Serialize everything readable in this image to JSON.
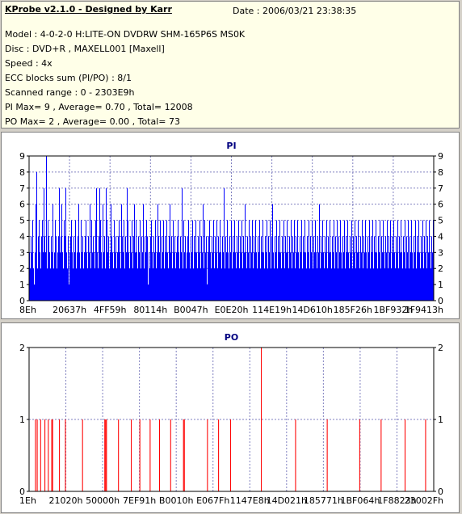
{
  "header": {
    "title": "KProbe v2.1.0 - Designed by Karr",
    "date": "Date : 2006/03/21 23:38:35",
    "lines": [
      "Model : 4-0-2-0 H:LITE-ON DVDRW SHM-165P6S MS0K",
      "Disc : DVD+R , MAXELL001 [Maxell]",
      "Speed : 4x",
      "ECC blocks sum (PI/PO) : 8/1",
      "Scanned range : 0 - 2303E9h",
      "PI Max= 9 , Average= 0.70 , Total= 12008",
      "PO Max= 2 , Average= 0.00 , Total= 73"
    ]
  },
  "chart_data": [
    {
      "type": "bar",
      "title": "PI",
      "ylim": [
        0,
        9
      ],
      "yticks": [
        "0",
        "1",
        "2",
        "3",
        "4",
        "5",
        "6",
        "7",
        "8",
        "9"
      ],
      "xticks": [
        "8Eh",
        "20637h",
        "4FF59h",
        "80114h",
        "B0047h",
        "E0E20h",
        "114E19h",
        "14D610h",
        "185F26h",
        "1BF932h",
        "1F9413h"
      ],
      "grid": true,
      "color": "#0000ff",
      "values": [
        3,
        2,
        4,
        3,
        5,
        2,
        1,
        3,
        6,
        8,
        2,
        4,
        5,
        3,
        2,
        4,
        5,
        3,
        7,
        4,
        3,
        9,
        2,
        5,
        4,
        3,
        2,
        4,
        3,
        6,
        2,
        3,
        5,
        4,
        2,
        3,
        4,
        7,
        3,
        4,
        6,
        3,
        2,
        5,
        4,
        7,
        3,
        2,
        4,
        1,
        3,
        4,
        5,
        3,
        2,
        4,
        3,
        5,
        2,
        3,
        4,
        6,
        3,
        2,
        5,
        3,
        4,
        2,
        3,
        4,
        5,
        3,
        2,
        4,
        3,
        6,
        2,
        5,
        3,
        4,
        3,
        2,
        5,
        7,
        3,
        2,
        4,
        7,
        5,
        3,
        2,
        6,
        3,
        4,
        2,
        7,
        5,
        3,
        4,
        2,
        3,
        6,
        4,
        3,
        2,
        5,
        3,
        4,
        2,
        3,
        4,
        5,
        3,
        2,
        6,
        4,
        3,
        5,
        2,
        4,
        3,
        7,
        5,
        3,
        2,
        4,
        3,
        5,
        2,
        4,
        6,
        3,
        5,
        3,
        2,
        4,
        3,
        5,
        2,
        4,
        3,
        6,
        2,
        4,
        3,
        5,
        4,
        1,
        3,
        2,
        4,
        5,
        3,
        2,
        4,
        3,
        5,
        2,
        3,
        6,
        4,
        3,
        5,
        2,
        4,
        3,
        5,
        2,
        4,
        3,
        5,
        3,
        2,
        4,
        6,
        3,
        4,
        2,
        5,
        3,
        4,
        2,
        3,
        4,
        5,
        3,
        2,
        4,
        3,
        7,
        2,
        5,
        3,
        4,
        2,
        3,
        4,
        5,
        3,
        2,
        4,
        3,
        5,
        2,
        4,
        3,
        5,
        3,
        2,
        4,
        3,
        5,
        2,
        4,
        3,
        6,
        2,
        5,
        3,
        4,
        1,
        3,
        4,
        5,
        3,
        2,
        4,
        3,
        5,
        2,
        4,
        3,
        5,
        2,
        4,
        3,
        5,
        3,
        2,
        4,
        3,
        7,
        2,
        4,
        3,
        5,
        3,
        2,
        4,
        3,
        5,
        2,
        4,
        3,
        5,
        3,
        2,
        4,
        3,
        5,
        2,
        4,
        3,
        5,
        2,
        4,
        3,
        6,
        3,
        2,
        4,
        3,
        5,
        2,
        4,
        3,
        5,
        2,
        4,
        3,
        5,
        3,
        2,
        4,
        3,
        5,
        2,
        4,
        3,
        5,
        3,
        2,
        4,
        3,
        5,
        2,
        4,
        3,
        5,
        2,
        4,
        6,
        3,
        2,
        4,
        3,
        5,
        2,
        4,
        3,
        5,
        3,
        2,
        4,
        3,
        5,
        2,
        4,
        3,
        5,
        3,
        2,
        4,
        3,
        5,
        2,
        4,
        3,
        5,
        2,
        4,
        3,
        5,
        3,
        2,
        4,
        3,
        5,
        2,
        4,
        3,
        5,
        3,
        2,
        4,
        3,
        5,
        2,
        4,
        3,
        5,
        2,
        4,
        3,
        5,
        3,
        2,
        4,
        3,
        6,
        2,
        4,
        3,
        5,
        3,
        2,
        4,
        3,
        5,
        2,
        4,
        3,
        5,
        3,
        2,
        4,
        3,
        5,
        2,
        4,
        3,
        5,
        2,
        4,
        3,
        5,
        3,
        2,
        4,
        3,
        5,
        2,
        4,
        3,
        5,
        3,
        2,
        4,
        3,
        5,
        2,
        4,
        3,
        5,
        2,
        4,
        3,
        5,
        3,
        2,
        4,
        3,
        5,
        2,
        4,
        3,
        5,
        3,
        2,
        4,
        3,
        5,
        2,
        4,
        3,
        5,
        2,
        4,
        3,
        5,
        3,
        2,
        4,
        3,
        5,
        2,
        4,
        3,
        5,
        3,
        2,
        4,
        3,
        5,
        2,
        4,
        3,
        5,
        2,
        4,
        3,
        5,
        3,
        2,
        4,
        3,
        5,
        2,
        4,
        3,
        5,
        3,
        2,
        4,
        3,
        5,
        2,
        4,
        3,
        5,
        2,
        4,
        3,
        5,
        3,
        2,
        4,
        3,
        5,
        2,
        4,
        3,
        5,
        3,
        2,
        4,
        3,
        5,
        2,
        4,
        3,
        5,
        2,
        4,
        3,
        5,
        3,
        2,
        4,
        3,
        5
      ]
    },
    {
      "type": "bar",
      "title": "PO",
      "ylim": [
        0,
        2
      ],
      "yticks": [
        "0",
        "1",
        "2"
      ],
      "xticks": [
        "1Eh",
        "21020h",
        "50000h",
        "7EF91h",
        "B0010h",
        "E067Fh",
        "1147E8h",
        "14D021h",
        "185771h",
        "1BF064h",
        "1F8823h",
        "23002Fh"
      ],
      "grid": true,
      "color": "#ff0000",
      "values": [
        0,
        0,
        0,
        0,
        0,
        0,
        0,
        1,
        0,
        1,
        0,
        0,
        0,
        1,
        0,
        0,
        0,
        0,
        1,
        0,
        0,
        0,
        1,
        0,
        0,
        0,
        1,
        1,
        0,
        0,
        0,
        0,
        0,
        0,
        0,
        1,
        0,
        0,
        0,
        0,
        0,
        0,
        1,
        0,
        0,
        0,
        0,
        0,
        0,
        0,
        0,
        0,
        0,
        0,
        0,
        0,
        0,
        0,
        0,
        0,
        0,
        0,
        1,
        0,
        0,
        0,
        0,
        0,
        0,
        0,
        0,
        0,
        0,
        0,
        0,
        0,
        0,
        0,
        0,
        0,
        0,
        0,
        0,
        0,
        0,
        0,
        0,
        0,
        1,
        1,
        1,
        0,
        0,
        0,
        0,
        0,
        0,
        0,
        0,
        0,
        0,
        0,
        0,
        0,
        1,
        0,
        0,
        0,
        0,
        0,
        0,
        0,
        0,
        0,
        0,
        0,
        0,
        0,
        0,
        1,
        0,
        0,
        0,
        0,
        0,
        0,
        0,
        0,
        0,
        1,
        0,
        0,
        0,
        0,
        0,
        0,
        0,
        0,
        0,
        0,
        0,
        1,
        0,
        0,
        0,
        0,
        0,
        0,
        0,
        0,
        0,
        0,
        1,
        0,
        0,
        0,
        0,
        0,
        0,
        0,
        0,
        0,
        0,
        0,
        0,
        1,
        0,
        0,
        0,
        0,
        0,
        0,
        0,
        0,
        0,
        0,
        0,
        0,
        0,
        0,
        1,
        1,
        0,
        0,
        0,
        0,
        0,
        0,
        0,
        0,
        0,
        0,
        0,
        0,
        0,
        0,
        0,
        0,
        0,
        0,
        0,
        0,
        0,
        0,
        0,
        0,
        0,
        0,
        1,
        0,
        0,
        0,
        0,
        0,
        0,
        0,
        0,
        0,
        0,
        0,
        0,
        1,
        0,
        0,
        0,
        0,
        0,
        0,
        0,
        0,
        0,
        0,
        0,
        0,
        0,
        1,
        0,
        0,
        0,
        0,
        0,
        0,
        0,
        0,
        0,
        0,
        0,
        0,
        0,
        0,
        0,
        0,
        0,
        0,
        0,
        0,
        0,
        0,
        0,
        0,
        0,
        0,
        0,
        0,
        0,
        0,
        0,
        0,
        0,
        0,
        0,
        2,
        0,
        0,
        0,
        0,
        0,
        0,
        0,
        0,
        0,
        0,
        0,
        0,
        0,
        0,
        0,
        0,
        0,
        0,
        0,
        0,
        0,
        0,
        0,
        0,
        0,
        0,
        0,
        0,
        0,
        0,
        0,
        0,
        0,
        0,
        0,
        0,
        0,
        0,
        0,
        1,
        0,
        0,
        0,
        0,
        0,
        0,
        0,
        0,
        0,
        0,
        0,
        0,
        0,
        0,
        0,
        0,
        0,
        0,
        0,
        0,
        0,
        0,
        0,
        0,
        0,
        0,
        0,
        0,
        0,
        0,
        0,
        0,
        0,
        0,
        0,
        0,
        1,
        0,
        0,
        0,
        0,
        0,
        0,
        0,
        0,
        0,
        0,
        0,
        0,
        0,
        0,
        0,
        0,
        0,
        0,
        0,
        0,
        0,
        0,
        0,
        0,
        0,
        0,
        0,
        0,
        0,
        0,
        0,
        0,
        0,
        0,
        0,
        0,
        0,
        1,
        0,
        0,
        0,
        0,
        0,
        0,
        0,
        0,
        0,
        0,
        0,
        0,
        0,
        0,
        0,
        0,
        0,
        0,
        0,
        0,
        0,
        0,
        0,
        0,
        1,
        0,
        0,
        0,
        0,
        0,
        0,
        0,
        0,
        0,
        0,
        0,
        0,
        0,
        0,
        0,
        0,
        0,
        0,
        0,
        0,
        0,
        0,
        0,
        0,
        0,
        0,
        0,
        1,
        0,
        0,
        0,
        0,
        0,
        0,
        0,
        0,
        0,
        0,
        0,
        0,
        0,
        0,
        0,
        0,
        0,
        0,
        0,
        0,
        0,
        0,
        0,
        1,
        0,
        0,
        0,
        0,
        0,
        0,
        0,
        0,
        0
      ]
    }
  ]
}
